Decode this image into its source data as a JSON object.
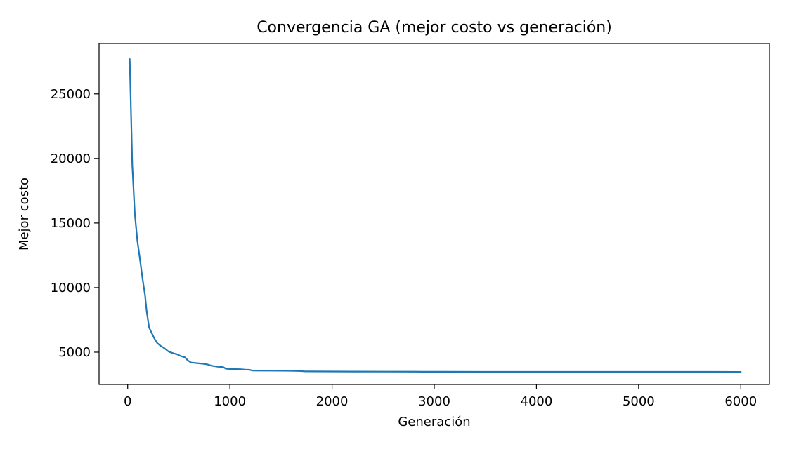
{
  "chart_data": {
    "type": "line",
    "title": "Convergencia GA (mejor costo vs generación)",
    "xlabel": "Generación",
    "ylabel": "Mejor costo",
    "xlim": [
      -280,
      6280
    ],
    "ylim": [
      2500,
      28900
    ],
    "xticks": [
      0,
      1000,
      2000,
      3000,
      4000,
      5000,
      6000
    ],
    "xtick_labels": [
      "0",
      "1000",
      "2000",
      "3000",
      "4000",
      "5000",
      "6000"
    ],
    "yticks": [
      5000,
      10000,
      15000,
      20000,
      25000
    ],
    "ytick_labels": [
      "5000",
      "10000",
      "15000",
      "20000",
      "25000"
    ],
    "grid": false,
    "legend": "none",
    "line_color": "#1f77b4",
    "series": [
      {
        "x": [
          20,
          45,
          70,
          95,
          120,
          145,
          170,
          185,
          210,
          240,
          265,
          290,
          320,
          360,
          400,
          450,
          480,
          520,
          560,
          590,
          620,
          680,
          740,
          780,
          820,
          880,
          930,
          940,
          960,
          1000,
          1050,
          1100,
          1150,
          1190,
          1220,
          1300,
          1500,
          1600,
          1700,
          1720,
          1800,
          2000,
          2200,
          2500,
          2800,
          2900,
          3500,
          4000,
          5000,
          6000
        ],
        "y": [
          27700,
          19500,
          15700,
          13600,
          12200,
          10700,
          9400,
          8200,
          6900,
          6400,
          6000,
          5700,
          5500,
          5300,
          5050,
          4900,
          4850,
          4700,
          4600,
          4350,
          4200,
          4150,
          4100,
          4050,
          3950,
          3880,
          3850,
          3820,
          3720,
          3700,
          3690,
          3680,
          3650,
          3640,
          3580,
          3570,
          3565,
          3560,
          3540,
          3520,
          3510,
          3505,
          3500,
          3495,
          3492,
          3485,
          3482,
          3480,
          3478,
          3475
        ]
      }
    ]
  }
}
